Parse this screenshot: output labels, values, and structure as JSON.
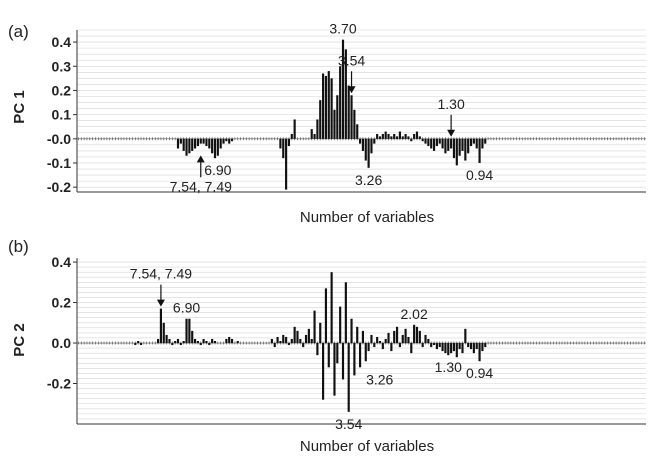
{
  "chart_data": [
    {
      "type": "bar",
      "panel_label": "(a)",
      "ylabel": "PC 1",
      "xlabel": "Number of variables",
      "ylim": [
        -0.22,
        0.45
      ],
      "yticks": [
        0.4,
        0.3,
        0.2,
        0.1,
        0.0,
        -0.1,
        -0.2
      ],
      "ytick_labels": [
        "0.4",
        "0.3",
        "0.2",
        "0.1",
        "-0.0",
        "-0.1",
        "-0.2"
      ],
      "grid": true,
      "n_variables": 200,
      "bars": [
        [
          35,
          -0.04
        ],
        [
          36,
          -0.02
        ],
        [
          37,
          -0.05
        ],
        [
          38,
          -0.07
        ],
        [
          39,
          -0.06
        ],
        [
          40,
          -0.05
        ],
        [
          41,
          -0.04
        ],
        [
          42,
          -0.03
        ],
        [
          43,
          -0.02
        ],
        [
          44,
          -0.02
        ],
        [
          45,
          -0.03
        ],
        [
          46,
          -0.04
        ],
        [
          47,
          -0.06
        ],
        [
          48,
          -0.08
        ],
        [
          49,
          -0.07
        ],
        [
          50,
          -0.04
        ],
        [
          51,
          -0.02
        ],
        [
          52,
          -0.01
        ],
        [
          53,
          -0.02
        ],
        [
          54,
          -0.01
        ],
        [
          71,
          -0.04
        ],
        [
          72,
          -0.08
        ],
        [
          73,
          -0.21
        ],
        [
          74,
          -0.03
        ],
        [
          75,
          0.02
        ],
        [
          76,
          0.08
        ],
        [
          82,
          0.04
        ],
        [
          83,
          0.02
        ],
        [
          84,
          0.08
        ],
        [
          85,
          0.16
        ],
        [
          86,
          0.27
        ],
        [
          87,
          0.26
        ],
        [
          88,
          0.28
        ],
        [
          89,
          0.25
        ],
        [
          90,
          0.12
        ],
        [
          91,
          0.18
        ],
        [
          92,
          0.3
        ],
        [
          93,
          0.41
        ],
        [
          94,
          0.37
        ],
        [
          95,
          0.22
        ],
        [
          96,
          0.18
        ],
        [
          97,
          0.12
        ],
        [
          98,
          0.06
        ],
        [
          99,
          -0.02
        ],
        [
          100,
          -0.05
        ],
        [
          101,
          -0.09
        ],
        [
          102,
          -0.12
        ],
        [
          103,
          -0.06
        ],
        [
          104,
          -0.02
        ],
        [
          105,
          0.02
        ],
        [
          106,
          0.01
        ],
        [
          107,
          0.02
        ],
        [
          108,
          0.03
        ],
        [
          109,
          0.02
        ],
        [
          110,
          0.01
        ],
        [
          111,
          0.02
        ],
        [
          112,
          0.01
        ],
        [
          113,
          0.03
        ],
        [
          114,
          0.01
        ],
        [
          115,
          0.02
        ],
        [
          116,
          0.01
        ],
        [
          117,
          -0.01
        ],
        [
          118,
          0.02
        ],
        [
          119,
          0.03
        ],
        [
          120,
          0.01
        ],
        [
          121,
          -0.01
        ],
        [
          122,
          -0.02
        ],
        [
          123,
          -0.03
        ],
        [
          124,
          -0.04
        ],
        [
          125,
          -0.05
        ],
        [
          126,
          -0.03
        ],
        [
          127,
          -0.02
        ],
        [
          128,
          -0.04
        ],
        [
          129,
          -0.06
        ],
        [
          130,
          -0.05
        ],
        [
          131,
          -0.04
        ],
        [
          132,
          -0.08
        ],
        [
          133,
          -0.11
        ],
        [
          134,
          -0.07
        ],
        [
          135,
          -0.05
        ],
        [
          136,
          -0.09
        ],
        [
          137,
          -0.06
        ],
        [
          138,
          -0.03
        ],
        [
          139,
          -0.02
        ],
        [
          140,
          -0.04
        ],
        [
          141,
          -0.1
        ],
        [
          142,
          -0.04
        ],
        [
          143,
          -0.02
        ]
      ],
      "annotations": [
        {
          "text": "3.70",
          "x": 93,
          "y": 0.41,
          "pos": "above"
        },
        {
          "text": "3.54",
          "x": 96,
          "y": 0.18,
          "pos": "arrow-down"
        },
        {
          "text": "1.30",
          "x": 131,
          "y": 0.0,
          "pos": "arrow-down"
        },
        {
          "text": "7.54, 7.49",
          "x": 43,
          "y": -0.06,
          "pos": "arrow-up"
        },
        {
          "text": "6.90",
          "x": 49,
          "y": -0.08,
          "pos": "below"
        },
        {
          "text": "3.26",
          "x": 102,
          "y": -0.12,
          "pos": "below"
        },
        {
          "text": "0.94",
          "x": 141,
          "y": -0.1,
          "pos": "below"
        }
      ]
    },
    {
      "type": "bar",
      "panel_label": "(b)",
      "ylabel": "PC 2",
      "xlabel": "Number of variables",
      "ylim": [
        -0.4,
        0.42
      ],
      "yticks": [
        0.4,
        0.2,
        0.0,
        -0.2
      ],
      "ytick_labels": [
        "0.4",
        "0.2",
        "0.0",
        "-0.2"
      ],
      "grid": true,
      "n_variables": 200,
      "bars": [
        [
          20,
          -0.01
        ],
        [
          21,
          0.01
        ],
        [
          22,
          -0.01
        ],
        [
          28,
          0.02
        ],
        [
          29,
          0.17
        ],
        [
          30,
          0.1
        ],
        [
          31,
          0.04
        ],
        [
          32,
          0.02
        ],
        [
          33,
          -0.01
        ],
        [
          34,
          0.01
        ],
        [
          35,
          0.02
        ],
        [
          36,
          -0.01
        ],
        [
          37,
          0.01
        ],
        [
          38,
          0.12
        ],
        [
          39,
          0.12
        ],
        [
          40,
          0.06
        ],
        [
          41,
          0.02
        ],
        [
          42,
          0.01
        ],
        [
          43,
          -0.01
        ],
        [
          44,
          0.02
        ],
        [
          45,
          0.01
        ],
        [
          46,
          -0.01
        ],
        [
          47,
          0.02
        ],
        [
          48,
          0.01
        ],
        [
          52,
          0.02
        ],
        [
          53,
          0.03
        ],
        [
          54,
          0.02
        ],
        [
          56,
          0.01
        ],
        [
          68,
          0.02
        ],
        [
          69,
          -0.02
        ],
        [
          70,
          0.03
        ],
        [
          71,
          0.01
        ],
        [
          72,
          0.04
        ],
        [
          73,
          0.03
        ],
        [
          74,
          -0.01
        ],
        [
          75,
          0.02
        ],
        [
          76,
          0.08
        ],
        [
          77,
          0.06
        ],
        [
          78,
          0.02
        ],
        [
          79,
          -0.02
        ],
        [
          80,
          0.04
        ],
        [
          81,
          0.07
        ],
        [
          82,
          0.02
        ],
        [
          83,
          0.16
        ],
        [
          84,
          -0.06
        ],
        [
          85,
          0.1
        ],
        [
          86,
          -0.28
        ],
        [
          87,
          0.27
        ],
        [
          88,
          -0.12
        ],
        [
          89,
          0.35
        ],
        [
          90,
          -0.26
        ],
        [
          91,
          -0.1
        ],
        [
          92,
          0.18
        ],
        [
          93,
          -0.18
        ],
        [
          94,
          0.3
        ],
        [
          95,
          -0.34
        ],
        [
          96,
          0.12
        ],
        [
          97,
          -0.16
        ],
        [
          98,
          0.08
        ],
        [
          99,
          -0.12
        ],
        [
          100,
          0.06
        ],
        [
          101,
          -0.09
        ],
        [
          102,
          -0.04
        ],
        [
          103,
          0.04
        ],
        [
          104,
          -0.02
        ],
        [
          105,
          0.03
        ],
        [
          106,
          0.01
        ],
        [
          107,
          -0.03
        ],
        [
          108,
          0.02
        ],
        [
          109,
          0.05
        ],
        [
          110,
          -0.04
        ],
        [
          111,
          0.06
        ],
        [
          112,
          0.08
        ],
        [
          113,
          -0.02
        ],
        [
          114,
          0.04
        ],
        [
          115,
          0.07
        ],
        [
          116,
          0.03
        ],
        [
          117,
          -0.05
        ],
        [
          118,
          0.09
        ],
        [
          119,
          0.08
        ],
        [
          120,
          0.06
        ],
        [
          121,
          -0.02
        ],
        [
          122,
          0.04
        ],
        [
          123,
          0.02
        ],
        [
          124,
          -0.02
        ],
        [
          125,
          -0.01
        ],
        [
          126,
          -0.03
        ],
        [
          127,
          -0.02
        ],
        [
          128,
          -0.04
        ],
        [
          129,
          -0.05
        ],
        [
          130,
          -0.06
        ],
        [
          131,
          -0.05
        ],
        [
          132,
          -0.04
        ],
        [
          133,
          -0.07
        ],
        [
          134,
          -0.03
        ],
        [
          135,
          -0.05
        ],
        [
          136,
          0.07
        ],
        [
          137,
          -0.02
        ],
        [
          138,
          -0.03
        ],
        [
          139,
          -0.05
        ],
        [
          140,
          -0.03
        ],
        [
          141,
          -0.09
        ],
        [
          142,
          -0.04
        ],
        [
          143,
          -0.02
        ]
      ],
      "annotations": [
        {
          "text": "7.54, 7.49",
          "x": 29,
          "y": 0.17,
          "pos": "arrow-down"
        },
        {
          "text": "6.90",
          "x": 38,
          "y": 0.12,
          "pos": "above"
        },
        {
          "text": "2.02",
          "x": 118,
          "y": 0.09,
          "pos": "above"
        },
        {
          "text": "3.26",
          "x": 99,
          "y": -0.12,
          "pos": "right"
        },
        {
          "text": "3.54",
          "x": 95,
          "y": -0.34,
          "pos": "below"
        },
        {
          "text": "1.30",
          "x": 130,
          "y": -0.06,
          "pos": "below"
        },
        {
          "text": "0.94",
          "x": 141,
          "y": -0.09,
          "pos": "below"
        }
      ]
    }
  ]
}
